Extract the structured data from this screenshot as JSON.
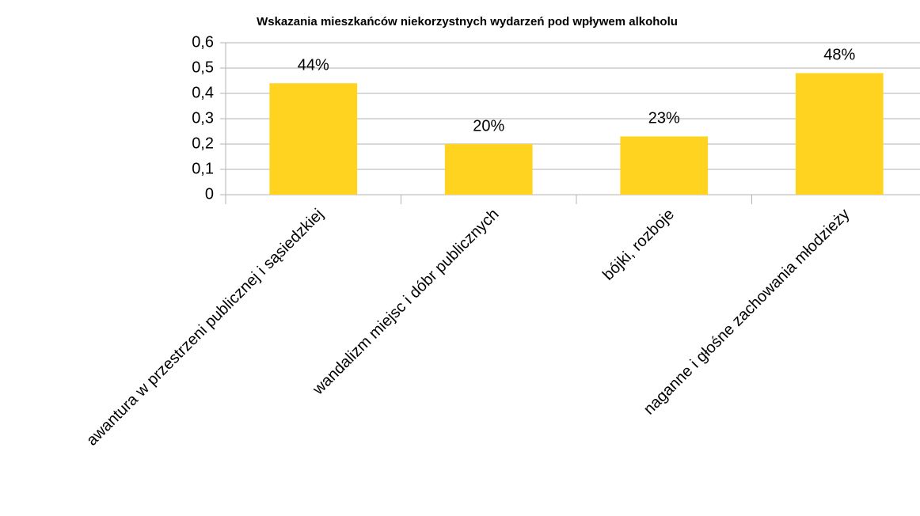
{
  "chart_data": {
    "type": "bar",
    "title": "Wskazania mieszkańców niekorzystnych wydarzeń pod wpływem alkoholu",
    "categories": [
      "awantura w przestrzeni publicznej i sąsiedzkiej",
      "wandalizm miejsc i dóbr publicznych",
      "bójki, rozboje",
      "naganne i głośne zachowania młodzieży"
    ],
    "values": [
      0.44,
      0.2,
      0.23,
      0.48
    ],
    "value_labels": [
      "44%",
      "20%",
      "23%",
      "48%"
    ],
    "color": "#ffd320",
    "ylim": [
      0,
      0.6
    ],
    "yticks": [
      0,
      {
        "value": 0.1,
        "label": "0,1"
      },
      {
        "value": 0.2,
        "label": "0,2"
      },
      {
        "value": 0.3,
        "label": "0,3"
      },
      {
        "value": 0.4,
        "label": "0,4"
      },
      {
        "value": 0.5,
        "label": "0,5"
      },
      {
        "value": 0.6,
        "label": "0,6"
      }
    ],
    "grid": true
  }
}
